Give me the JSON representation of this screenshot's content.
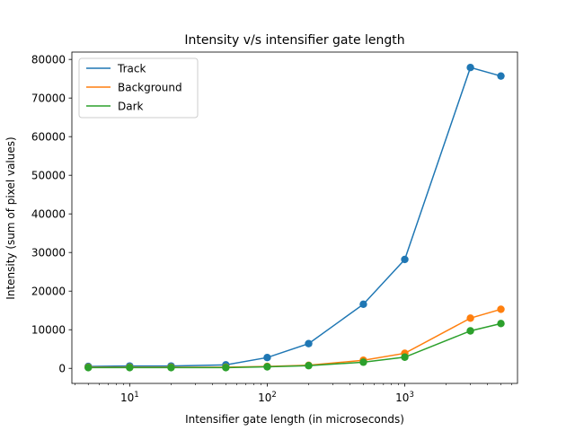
{
  "chart_data": {
    "type": "line",
    "title": "Intensity v/s intensifier gate length",
    "xlabel": "Intensifier gate length (in microseconds)",
    "ylabel": "Intensity (sum of pixel values)",
    "xscale": "log",
    "xlim": [
      3.8,
      6600
    ],
    "ylim": [
      -3900,
      81900
    ],
    "x": [
      5,
      10,
      20,
      50,
      100,
      200,
      500,
      1000,
      3000,
      5000
    ],
    "xticks": [
      10,
      100,
      1000
    ],
    "xtick_labels": [
      {
        "base": "10",
        "exp": "1"
      },
      {
        "base": "10",
        "exp": "2"
      },
      {
        "base": "10",
        "exp": "3"
      }
    ],
    "yticks": [
      0,
      10000,
      20000,
      30000,
      40000,
      50000,
      60000,
      70000,
      80000
    ],
    "ytick_labels": [
      "0",
      "10000",
      "20000",
      "30000",
      "40000",
      "50000",
      "60000",
      "70000",
      "80000"
    ],
    "grid": false,
    "legend_position": "top-left",
    "series": [
      {
        "name": "Track",
        "color": "#1f77b4",
        "values": [
          500,
          600,
          600,
          900,
          2800,
          6400,
          16600,
          28200,
          77900,
          75700
        ]
      },
      {
        "name": "Background",
        "color": "#ff7f0e",
        "values": [
          300,
          300,
          300,
          300,
          500,
          800,
          2100,
          3900,
          13000,
          15300
        ]
      },
      {
        "name": "Dark",
        "color": "#2ca02c",
        "values": [
          200,
          200,
          200,
          200,
          400,
          700,
          1600,
          2900,
          9700,
          11600
        ]
      }
    ]
  }
}
